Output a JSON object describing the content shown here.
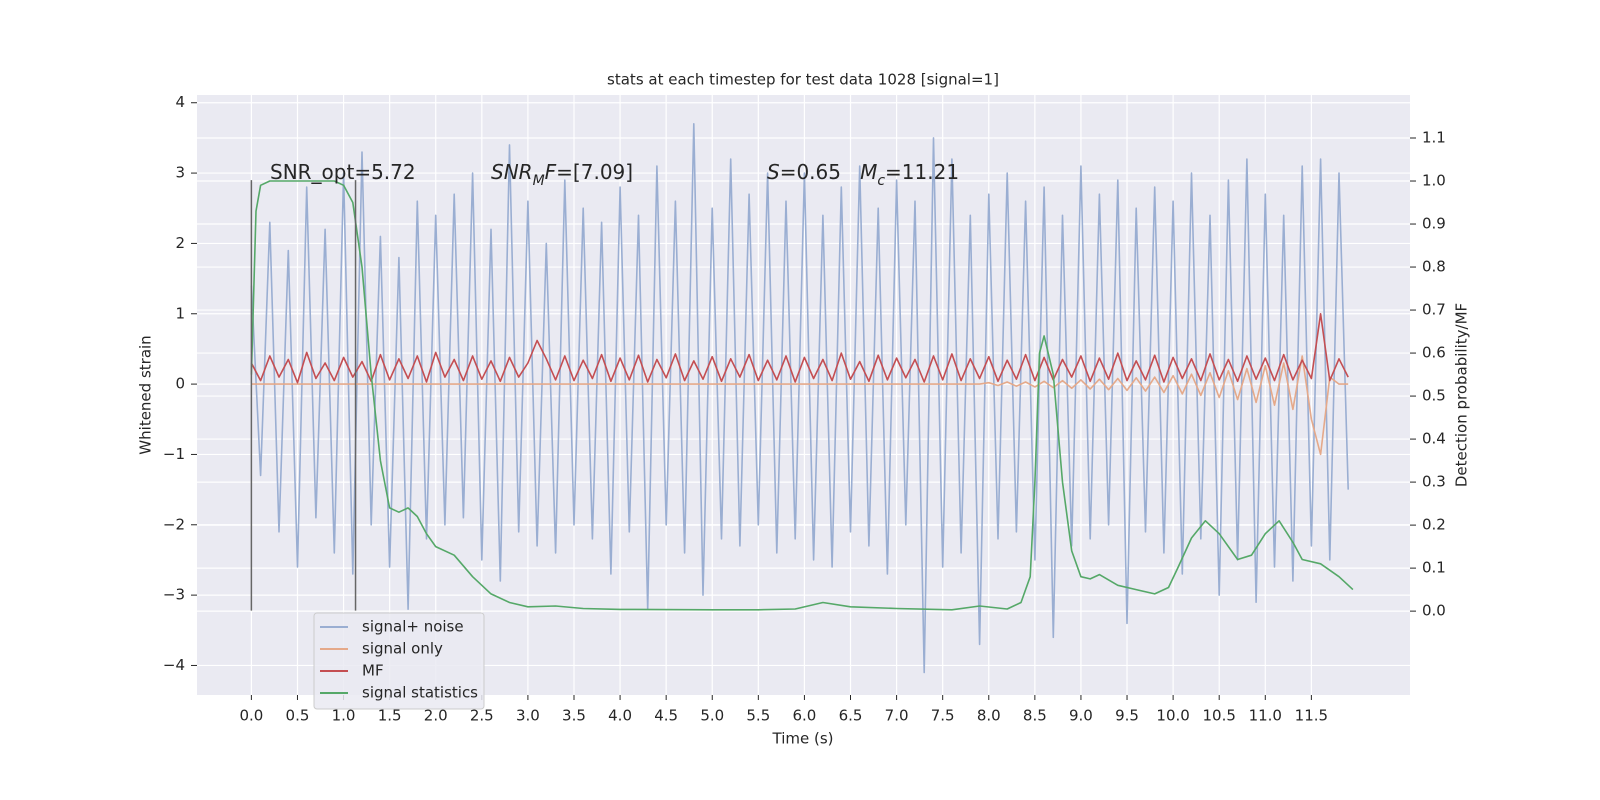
{
  "chart_data": {
    "type": "line",
    "title": "stats at each timestep for test data 1028 [signal=1]",
    "xlabel": "Time (s)",
    "ylabel": "Whitened strain",
    "y2label": "Detection probability/MF",
    "grid": true,
    "legend": "lower left",
    "xlim": [
      -0.59,
      12.57
    ],
    "ylim": [
      -4.42,
      4.11
    ],
    "y2lim": [
      -0.195,
      1.2
    ],
    "xticks": [
      {
        "value": 0,
        "label": "0.0"
      },
      0.5,
      {
        "value": 1,
        "label": "1.0"
      },
      1.5,
      {
        "value": 2,
        "label": "2.0"
      },
      2.5,
      {
        "value": 3,
        "label": "3.0"
      },
      3.5,
      {
        "value": 4,
        "label": "4.0"
      },
      4.5,
      {
        "value": 5,
        "label": "5.0"
      },
      5.5,
      {
        "value": 6,
        "label": "6.0"
      },
      6.5,
      {
        "value": 7,
        "label": "7.0"
      },
      7.5,
      {
        "value": 8,
        "label": "8.0"
      },
      8.5,
      {
        "value": 9,
        "label": "9.0"
      },
      9.5,
      {
        "value": 10,
        "label": "10.0"
      },
      10.5,
      {
        "value": 11,
        "label": "11.0"
      },
      11.5
    ],
    "yticks": [
      {
        "value": -4,
        "label": "−4"
      },
      {
        "value": -3,
        "label": "−3"
      },
      {
        "value": -2,
        "label": "−2"
      },
      {
        "value": -1,
        "label": "−1"
      },
      0,
      1,
      2,
      3,
      4
    ],
    "y2ticks": [
      {
        "value": 0,
        "label": "0.0"
      },
      0.1,
      0.2,
      0.3,
      0.4,
      0.5,
      0.6,
      0.7,
      0.8,
      0.9,
      {
        "value": 1,
        "label": "1.0"
      },
      1.1
    ],
    "annotations": [
      [
        {
          "t": "SNR_opt=5.72",
          "style": "normal"
        }
      ],
      [
        {
          "t": "SNR",
          "style": "italic"
        },
        {
          "t": "M",
          "style": "sub"
        },
        {
          "t": "F",
          "style": "italic"
        },
        {
          "t": "=[7.09]",
          "style": "normal"
        }
      ],
      [
        {
          "t": "S",
          "style": "italic"
        },
        {
          "t": "=0.65   ",
          "style": "normal"
        },
        {
          "t": "M",
          "style": "italic"
        },
        {
          "t": "c",
          "style": "sub"
        },
        {
          "t": "=11.21",
          "style": "normal"
        }
      ]
    ],
    "vlines": {
      "x": [
        0,
        1.13
      ],
      "ymin": -3.22,
      "ymax": 2.9,
      "color": "#666666"
    },
    "x": [
      0.0,
      0.1,
      0.2,
      0.3,
      0.4,
      0.5,
      0.6,
      0.7,
      0.8,
      0.9,
      1.0,
      1.1,
      1.2,
      1.3,
      1.4,
      1.5,
      1.6,
      1.7,
      1.8,
      1.9,
      2.0,
      2.1,
      2.2,
      2.3,
      2.4,
      2.5,
      2.6,
      2.7,
      2.8,
      2.9,
      3.0,
      3.1,
      3.2,
      3.3,
      3.4,
      3.5,
      3.6,
      3.7,
      3.8,
      3.9,
      4.0,
      4.1,
      4.2,
      4.3,
      4.4,
      4.5,
      4.6,
      4.7,
      4.8,
      4.9,
      5.0,
      5.1,
      5.2,
      5.3,
      5.4,
      5.5,
      5.6,
      5.7,
      5.8,
      5.9,
      6.0,
      6.1,
      6.2,
      6.3,
      6.4,
      6.5,
      6.6,
      6.7,
      6.8,
      6.9,
      7.0,
      7.1,
      7.2,
      7.3,
      7.4,
      7.5,
      7.6,
      7.7,
      7.8,
      7.9,
      8.0,
      8.1,
      8.2,
      8.3,
      8.4,
      8.5,
      8.6,
      8.7,
      8.8,
      8.9,
      9.0,
      9.1,
      9.2,
      9.3,
      9.4,
      9.5,
      9.6,
      9.7,
      9.8,
      9.9,
      10.0,
      10.1,
      10.2,
      10.3,
      10.4,
      10.5,
      10.6,
      10.7,
      10.8,
      10.9,
      11.0,
      11.1,
      11.2,
      11.3,
      11.4,
      11.5,
      11.6,
      11.7,
      11.8,
      11.9
    ],
    "series": [
      {
        "name": "signal+ noise",
        "color": "#9aaed2",
        "values": [
          1.4,
          -1.3,
          2.3,
          -2.1,
          1.9,
          -2.6,
          2.8,
          -1.9,
          2.2,
          -2.4,
          3.0,
          -2.7,
          3.3,
          -2.0,
          2.1,
          -2.6,
          1.8,
          -3.2,
          2.6,
          -2.2,
          2.4,
          -2.0,
          2.7,
          -1.9,
          3.0,
          -2.5,
          2.2,
          -2.8,
          3.4,
          -2.1,
          2.6,
          -2.3,
          2.0,
          -2.4,
          2.9,
          -2.0,
          2.5,
          -2.2,
          2.3,
          -2.7,
          2.8,
          -2.1,
          2.4,
          -3.2,
          3.1,
          -2.0,
          2.6,
          -2.4,
          3.7,
          -3.0,
          2.5,
          -2.2,
          3.2,
          -2.3,
          2.7,
          -2.0,
          3.0,
          -2.4,
          2.6,
          -2.2,
          3.0,
          -2.5,
          2.4,
          -2.6,
          2.8,
          -2.1,
          3.1,
          -2.3,
          2.5,
          -2.7,
          2.9,
          -2.0,
          2.6,
          -4.1,
          3.5,
          -2.6,
          3.2,
          -2.4,
          2.4,
          -3.7,
          2.7,
          -2.2,
          3.0,
          -2.1,
          2.6,
          -2.5,
          2.8,
          -3.6,
          2.4,
          -2.3,
          3.1,
          -2.2,
          2.7,
          -2.0,
          2.9,
          -3.4,
          2.5,
          -2.1,
          2.8,
          -2.4,
          2.6,
          -2.7,
          3.0,
          -2.2,
          2.4,
          -3.0,
          2.9,
          -2.5,
          3.2,
          -3.1,
          2.7,
          -2.6,
          2.4,
          -2.8,
          3.1,
          -2.3,
          3.2,
          -2.5,
          3.0,
          -1.5
        ]
      },
      {
        "name": "signal only",
        "color": "#e5a98a",
        "values": [
          0,
          0,
          0,
          0,
          0,
          0,
          0,
          0,
          0,
          0,
          0,
          0,
          0,
          0,
          0,
          0,
          0,
          0,
          0,
          0,
          0,
          0,
          0,
          0,
          0,
          0,
          0,
          0,
          0,
          0,
          0,
          0,
          0,
          0,
          0,
          0,
          0,
          0,
          0,
          0,
          0,
          0,
          0,
          0,
          0,
          0,
          0,
          0,
          0,
          0,
          0,
          0,
          0,
          0,
          0,
          0,
          0,
          0,
          0,
          0,
          0,
          0,
          0,
          0,
          0,
          0,
          0,
          0,
          0,
          0,
          0,
          0,
          0,
          0,
          0,
          0,
          0,
          0,
          0,
          0,
          0.02,
          -0.02,
          0.03,
          -0.03,
          0.03,
          -0.04,
          0.04,
          -0.05,
          0.05,
          -0.06,
          0.06,
          -0.07,
          0.07,
          -0.08,
          0.08,
          -0.09,
          0.09,
          -0.1,
          0.1,
          -0.12,
          0.12,
          -0.14,
          0.14,
          -0.16,
          0.16,
          -0.19,
          0.19,
          -0.22,
          0.22,
          -0.26,
          0.26,
          -0.3,
          0.3,
          -0.36,
          0.4,
          -0.5,
          -1.0,
          0.1,
          0.0,
          0.0
        ]
      },
      {
        "name": "MF",
        "color": "#c44e52",
        "values": [
          0.3,
          0.05,
          0.4,
          0.1,
          0.35,
          0.02,
          0.45,
          0.08,
          0.3,
          0.05,
          0.38,
          0.1,
          0.32,
          0.04,
          0.42,
          0.06,
          0.36,
          0.08,
          0.4,
          0.03,
          0.45,
          0.1,
          0.35,
          0.05,
          0.4,
          0.07,
          0.33,
          0.04,
          0.38,
          0.1,
          0.3,
          0.62,
          0.36,
          0.06,
          0.4,
          0.05,
          0.34,
          0.08,
          0.42,
          0.04,
          0.37,
          0.06,
          0.41,
          0.03,
          0.35,
          0.09,
          0.43,
          0.05,
          0.33,
          0.07,
          0.39,
          0.04,
          0.36,
          0.1,
          0.42,
          0.05,
          0.34,
          0.06,
          0.4,
          0.03,
          0.38,
          0.08,
          0.35,
          0.05,
          0.44,
          0.07,
          0.32,
          0.04,
          0.41,
          0.06,
          0.37,
          0.09,
          0.35,
          0.03,
          0.4,
          0.06,
          0.43,
          0.05,
          0.36,
          0.08,
          0.39,
          0.04,
          0.34,
          0.07,
          0.42,
          0.05,
          0.38,
          0.06,
          0.35,
          0.1,
          0.4,
          0.04,
          0.37,
          0.07,
          0.44,
          0.05,
          0.33,
          0.06,
          0.41,
          0.03,
          0.38,
          0.08,
          0.36,
          0.05,
          0.43,
          0.06,
          0.35,
          0.04,
          0.4,
          0.07,
          0.37,
          0.05,
          0.42,
          0.06,
          0.34,
          0.08,
          1.0,
          0.05,
          0.36,
          0.1
        ]
      },
      {
        "name": "signal statistics",
        "color": "#55a868",
        "axis": "y2",
        "x": [
          0,
          0.05,
          0.1,
          0.2,
          0.5,
          0.9,
          1.0,
          1.1,
          1.2,
          1.3,
          1.4,
          1.5,
          1.6,
          1.7,
          1.8,
          1.9,
          2.0,
          2.2,
          2.4,
          2.6,
          2.8,
          3.0,
          3.3,
          3.6,
          4.0,
          5.0,
          5.5,
          5.9,
          6.2,
          6.5,
          7.0,
          7.6,
          7.9,
          8.2,
          8.35,
          8.45,
          8.5,
          8.55,
          8.6,
          8.7,
          8.8,
          8.9,
          9.0,
          9.1,
          9.2,
          9.4,
          9.6,
          9.8,
          9.95,
          10.05,
          10.2,
          10.35,
          10.5,
          10.7,
          10.85,
          11.0,
          11.15,
          11.3,
          11.4,
          11.6,
          11.8,
          11.95
        ],
        "values": [
          0.55,
          0.93,
          0.99,
          1.0,
          1.0,
          1.0,
          0.99,
          0.95,
          0.8,
          0.55,
          0.35,
          0.24,
          0.23,
          0.24,
          0.22,
          0.18,
          0.15,
          0.13,
          0.08,
          0.04,
          0.02,
          0.01,
          0.012,
          0.006,
          0.004,
          0.003,
          0.003,
          0.005,
          0.02,
          0.01,
          0.006,
          0.003,
          0.012,
          0.005,
          0.02,
          0.08,
          0.3,
          0.6,
          0.64,
          0.55,
          0.3,
          0.14,
          0.08,
          0.075,
          0.085,
          0.06,
          0.05,
          0.04,
          0.055,
          0.1,
          0.17,
          0.21,
          0.18,
          0.12,
          0.13,
          0.18,
          0.21,
          0.16,
          0.12,
          0.11,
          0.08,
          0.05
        ]
      }
    ]
  }
}
